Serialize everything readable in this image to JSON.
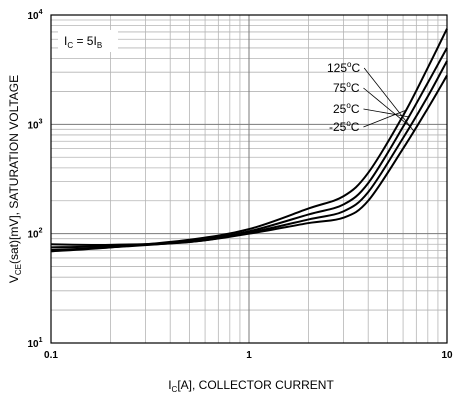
{
  "chart_data": {
    "type": "line",
    "xlabel": "IC[A], COLLECTOR CURRENT",
    "xlabel_parts": {
      "main": "I",
      "sub": "C",
      "rest": "[A], COLLECTOR CURRENT"
    },
    "ylabel": "VCE(sat)[mV], SATURATION VOLTAGE",
    "ylabel_parts": {
      "main": "V",
      "sub": "CE",
      "rest": "(sat)[mV], SATURATION VOLTAGE"
    },
    "x_scale": "log",
    "y_scale": "log",
    "xlim": [
      0.1,
      10
    ],
    "ylim": [
      10,
      10000
    ],
    "x_ticks": [
      {
        "value": 0.1,
        "label": "0.1"
      },
      {
        "value": 1,
        "label": "1"
      },
      {
        "value": 10,
        "label": "10"
      }
    ],
    "y_ticks": [
      {
        "value": 10,
        "base": "10",
        "exp": "1"
      },
      {
        "value": 100,
        "base": "10",
        "exp": "2"
      },
      {
        "value": 1000,
        "base": "10",
        "exp": "3"
      },
      {
        "value": 10000,
        "base": "10",
        "exp": "4"
      }
    ],
    "grid": true,
    "annotation": {
      "parts": [
        "I",
        "C",
        " = 5I",
        "B"
      ],
      "text": "IC = 5IB"
    },
    "series": [
      {
        "name": "125°C",
        "label_main": "125",
        "label_deg": "o",
        "label_unit": "C",
        "x": [
          0.1,
          0.2,
          0.5,
          1,
          2,
          3,
          4,
          6,
          8,
          10
        ],
        "y": [
          80,
          79,
          84,
          100,
          125,
          140,
          200,
          600,
          1400,
          2800
        ]
      },
      {
        "name": "75°C",
        "label_main": "75",
        "label_deg": "o",
        "label_unit": "C",
        "x": [
          0.1,
          0.2,
          0.5,
          1,
          2,
          3,
          4,
          6,
          8,
          10
        ],
        "y": [
          75,
          77,
          84,
          102,
          135,
          160,
          240,
          750,
          1800,
          3800
        ]
      },
      {
        "name": "25°C",
        "label_main": "25",
        "label_deg": "o",
        "label_unit": "C",
        "x": [
          0.1,
          0.2,
          0.5,
          1,
          2,
          3,
          4,
          6,
          8,
          10
        ],
        "y": [
          71,
          75,
          85,
          105,
          150,
          185,
          290,
          950,
          2400,
          5000
        ]
      },
      {
        "name": "-25°C",
        "label_main": "-25",
        "label_deg": "o",
        "label_unit": "C",
        "x": [
          0.1,
          0.2,
          0.5,
          1,
          2,
          3,
          4,
          6,
          8,
          10
        ],
        "y": [
          69,
          75,
          88,
          110,
          170,
          220,
          360,
          1200,
          3300,
          7500
        ]
      }
    ],
    "series_colors": [
      "#000000",
      "#000000",
      "#000000",
      "#000000"
    ]
  }
}
